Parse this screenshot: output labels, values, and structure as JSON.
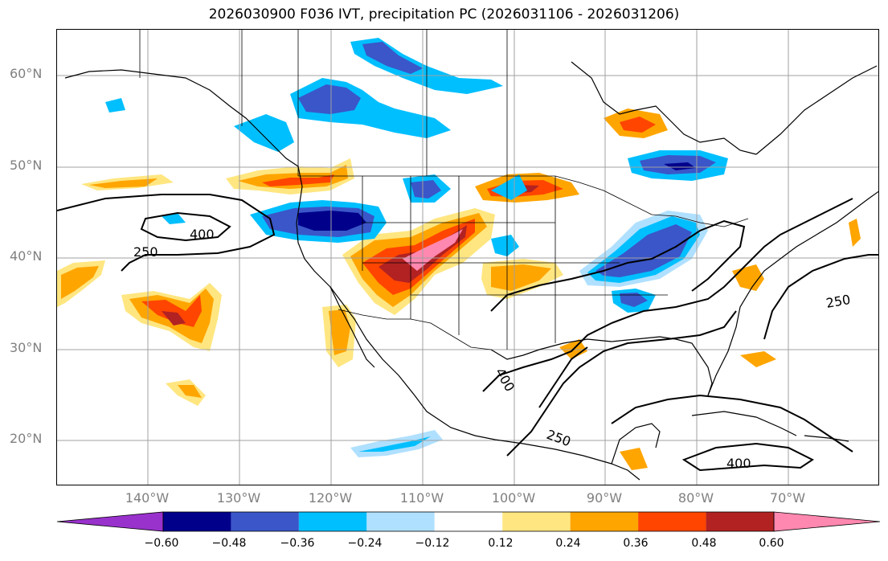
{
  "title": "2026030900 F036 IVT, precipitation PC (2026031106 - 2026031206)",
  "map": {
    "projection": "lat-lon",
    "lon_range": [
      -150,
      -60
    ],
    "lat_range": [
      15,
      65
    ],
    "gridlines": true,
    "lat_labels": [
      "60°N",
      "50°N",
      "40°N",
      "30°N",
      "20°N"
    ],
    "lon_labels": [
      "140°W",
      "130°W",
      "120°W",
      "110°W",
      "100°W",
      "90°W",
      "80°W",
      "70°W"
    ],
    "contour_labels": [
      "400",
      "250",
      "400",
      "250",
      "250",
      "400"
    ]
  },
  "colorbar": {
    "orientation": "horizontal",
    "extend": "both",
    "ticks": [
      "−0.60",
      "−0.48",
      "−0.36",
      "−0.24",
      "−0.12",
      "0.12",
      "0.24",
      "0.36",
      "0.48",
      "0.60"
    ],
    "colors": [
      "#9932cc",
      "#00008b",
      "#3a56c8",
      "#00bfff",
      "#b0e0ff",
      "#ffffff",
      "#ffe680",
      "#ffa500",
      "#ff4500",
      "#b22222",
      "#ff88b0"
    ]
  },
  "chart_data": {
    "type": "heatmap",
    "title": "2026030900 F036 IVT, precipitation PC (2026031106 - 2026031206)",
    "xlabel": "",
    "ylabel": "",
    "xlim": [
      -150,
      -60
    ],
    "ylim": [
      15,
      65
    ],
    "colorbar_levels": [
      -0.6,
      -0.48,
      -0.36,
      -0.24,
      -0.12,
      0.12,
      0.24,
      0.36,
      0.48,
      0.6
    ],
    "contour_levels": [
      250,
      400
    ],
    "regions": [
      {
        "level": 0.48,
        "lon": -111,
        "lat": 42
      },
      {
        "level": 0.36,
        "lon": -97,
        "lat": 48
      },
      {
        "level": 0.36,
        "lon": -139,
        "lat": 36
      },
      {
        "level": 0.36,
        "lon": -84,
        "lat": 55
      },
      {
        "level": 0.24,
        "lon": -124,
        "lat": 49
      },
      {
        "level": -0.48,
        "lon": -122,
        "lat": 44
      },
      {
        "level": -0.36,
        "lon": -83,
        "lat": 41
      },
      {
        "level": -0.36,
        "lon": -77,
        "lat": 50
      },
      {
        "level": -0.24,
        "lon": -129,
        "lat": 58
      },
      {
        "level": -0.24,
        "lon": -108,
        "lat": 59
      },
      {
        "level": -0.36,
        "lon": -88,
        "lat": 36
      }
    ]
  }
}
